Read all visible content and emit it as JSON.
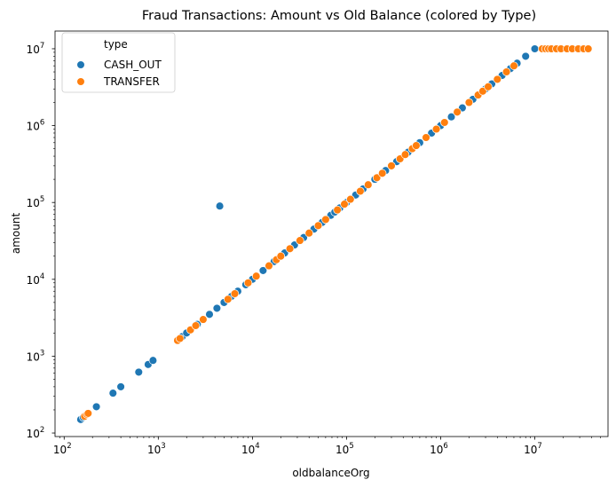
{
  "chart_data": {
    "type": "scatter",
    "title": "Fraud Transactions: Amount vs Old Balance (colored by Type)",
    "xlabel": "oldbalanceOrg",
    "ylabel": "amount",
    "xscale": "log",
    "yscale": "log",
    "xlim": [
      80,
      60000000
    ],
    "ylim": [
      90,
      17000000
    ],
    "x_ticks": [
      {
        "base": "10",
        "exp": "2",
        "value": 100
      },
      {
        "base": "10",
        "exp": "3",
        "value": 1000
      },
      {
        "base": "10",
        "exp": "4",
        "value": 10000
      },
      {
        "base": "10",
        "exp": "5",
        "value": 100000
      },
      {
        "base": "10",
        "exp": "6",
        "value": 1000000
      },
      {
        "base": "10",
        "exp": "7",
        "value": 10000000
      }
    ],
    "y_ticks": [
      {
        "base": "10",
        "exp": "2",
        "value": 100
      },
      {
        "base": "10",
        "exp": "3",
        "value": 1000
      },
      {
        "base": "10",
        "exp": "4",
        "value": 10000
      },
      {
        "base": "10",
        "exp": "5",
        "value": 100000
      },
      {
        "base": "10",
        "exp": "6",
        "value": 1000000
      },
      {
        "base": "10",
        "exp": "7",
        "value": 10000000
      }
    ],
    "grid": false,
    "legend": {
      "title": "type",
      "position": "top-left"
    },
    "series": [
      {
        "name": "CASH_OUT",
        "color": "#1f77b4",
        "points": [
          [
            150,
            150
          ],
          [
            160,
            160
          ],
          [
            170,
            170
          ],
          [
            220,
            220
          ],
          [
            330,
            330
          ],
          [
            400,
            400
          ],
          [
            620,
            620
          ],
          [
            780,
            780
          ],
          [
            880,
            880
          ],
          [
            4500,
            90000
          ],
          [
            1800,
            1800
          ],
          [
            2000,
            2000
          ],
          [
            2600,
            2600
          ],
          [
            3500,
            3500
          ],
          [
            4200,
            4200
          ],
          [
            5000,
            5000
          ],
          [
            6000,
            6000
          ],
          [
            7000,
            7000
          ],
          [
            8500,
            8500
          ],
          [
            10000,
            10000
          ],
          [
            13000,
            13000
          ],
          [
            17000,
            17000
          ],
          [
            22000,
            22000
          ],
          [
            28000,
            28000
          ],
          [
            35000,
            35000
          ],
          [
            45000,
            45000
          ],
          [
            55000,
            55000
          ],
          [
            68000,
            68000
          ],
          [
            75000,
            75000
          ],
          [
            85000,
            85000
          ],
          [
            100000,
            100000
          ],
          [
            125000,
            125000
          ],
          [
            150000,
            150000
          ],
          [
            200000,
            200000
          ],
          [
            260000,
            260000
          ],
          [
            340000,
            340000
          ],
          [
            450000,
            450000
          ],
          [
            600000,
            600000
          ],
          [
            800000,
            800000
          ],
          [
            1000000,
            1000000
          ],
          [
            1300000,
            1300000
          ],
          [
            1700000,
            1700000
          ],
          [
            2200000,
            2200000
          ],
          [
            3000000,
            3000000
          ],
          [
            3500000,
            3500000
          ],
          [
            4500000,
            4500000
          ],
          [
            5500000,
            5500000
          ],
          [
            6500000,
            6500000
          ],
          [
            8000000,
            8000000
          ],
          [
            10000000,
            10000000
          ]
        ]
      },
      {
        "name": "TRANSFER",
        "color": "#ff7f0e",
        "points": [
          [
            165,
            165
          ],
          [
            175,
            175
          ],
          [
            180,
            180
          ],
          [
            1600,
            1600
          ],
          [
            1700,
            1700
          ],
          [
            2200,
            2200
          ],
          [
            2500,
            2500
          ],
          [
            3000,
            3000
          ],
          [
            5500,
            5500
          ],
          [
            6500,
            6500
          ],
          [
            9000,
            9000
          ],
          [
            11000,
            11000
          ],
          [
            15000,
            15000
          ],
          [
            18000,
            18000
          ],
          [
            20000,
            20000
          ],
          [
            25000,
            25000
          ],
          [
            32000,
            32000
          ],
          [
            40000,
            40000
          ],
          [
            50000,
            50000
          ],
          [
            60000,
            60000
          ],
          [
            80000,
            80000
          ],
          [
            95000,
            95000
          ],
          [
            110000,
            110000
          ],
          [
            140000,
            140000
          ],
          [
            170000,
            170000
          ],
          [
            210000,
            210000
          ],
          [
            240000,
            240000
          ],
          [
            300000,
            300000
          ],
          [
            370000,
            370000
          ],
          [
            420000,
            420000
          ],
          [
            500000,
            500000
          ],
          [
            550000,
            550000
          ],
          [
            700000,
            700000
          ],
          [
            900000,
            900000
          ],
          [
            1100000,
            1100000
          ],
          [
            1500000,
            1500000
          ],
          [
            2000000,
            2000000
          ],
          [
            2500000,
            2500000
          ],
          [
            2800000,
            2800000
          ],
          [
            3200000,
            3200000
          ],
          [
            4000000,
            4000000
          ],
          [
            5000000,
            5000000
          ],
          [
            6000000,
            6000000
          ],
          [
            12000000,
            10000000
          ],
          [
            13000000,
            10000000
          ],
          [
            14000000,
            10000000
          ],
          [
            15000000,
            10000000
          ],
          [
            17000000,
            10000000
          ],
          [
            19000000,
            10000000
          ],
          [
            22000000,
            10000000
          ],
          [
            25000000,
            10000000
          ],
          [
            29000000,
            10000000
          ],
          [
            33000000,
            10000000
          ],
          [
            37000000,
            10000000
          ]
        ]
      }
    ]
  }
}
